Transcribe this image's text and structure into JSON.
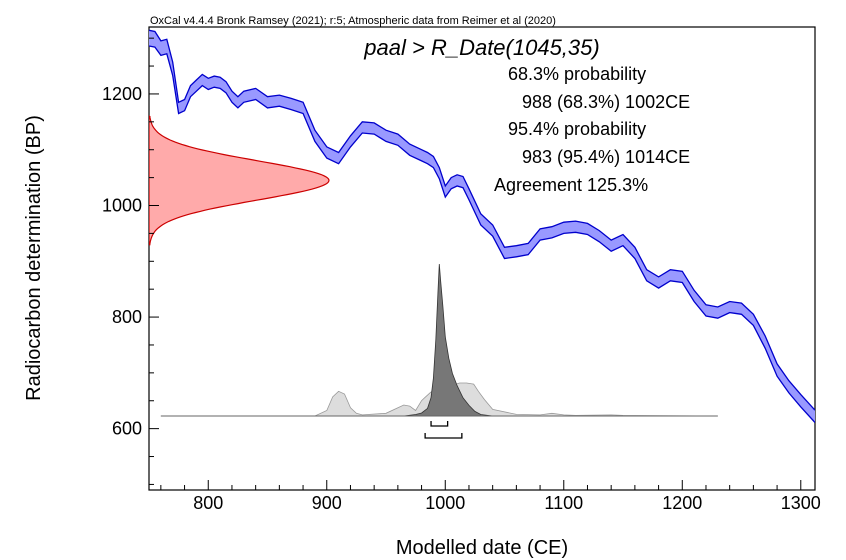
{
  "header": "OxCal v4.4.4 Bronk Ramsey (2021); r:5; Atmospheric data from Reimer et al (2020)",
  "title": "paal > R_Date(1045,35)",
  "annotations": [
    "68.3% probability",
    "988 (68.3%) 1002CE",
    "95.4% probability",
    "983 (95.4%) 1014CE",
    "Agreement 125.3%"
  ],
  "colors": {
    "calibration_band": "#9999ff",
    "calibration_edge": "#0000cc",
    "radiocarbon_fill": "#ffaaaa",
    "radiocarbon_edge": "#cc0000",
    "posterior": "#777777",
    "prior": "#dddddd"
  },
  "chart_data": {
    "type": "area",
    "xlabel": "Modelled date (CE)",
    "ylabel": "Radiocarbon determination (BP)",
    "xlim": [
      750,
      1312
    ],
    "ylim": [
      490,
      1320
    ],
    "xticks": [
      800,
      900,
      1000,
      1100,
      1200,
      1300
    ],
    "yticks": [
      600,
      800,
      1000,
      1200
    ],
    "tick_labels_x": [
      "800",
      "900",
      "1000",
      "1100",
      "1200",
      "1300"
    ],
    "tick_labels_y": [
      "600",
      "800",
      "1000",
      "1200"
    ],
    "calibration_curve": {
      "x": [
        750,
        755,
        760,
        765,
        770,
        775,
        780,
        785,
        790,
        795,
        800,
        805,
        810,
        815,
        820,
        825,
        830,
        840,
        850,
        860,
        870,
        880,
        890,
        900,
        910,
        920,
        930,
        940,
        950,
        960,
        970,
        980,
        985,
        990,
        995,
        1000,
        1005,
        1010,
        1015,
        1020,
        1030,
        1040,
        1050,
        1060,
        1070,
        1080,
        1090,
        1100,
        1110,
        1120,
        1130,
        1140,
        1150,
        1160,
        1170,
        1180,
        1190,
        1200,
        1210,
        1220,
        1230,
        1240,
        1250,
        1260,
        1270,
        1280,
        1290,
        1300,
        1312
      ],
      "mid": [
        1300,
        1298,
        1282,
        1285,
        1245,
        1175,
        1180,
        1205,
        1215,
        1225,
        1218,
        1222,
        1220,
        1212,
        1195,
        1185,
        1195,
        1200,
        1185,
        1188,
        1182,
        1175,
        1125,
        1095,
        1085,
        1115,
        1140,
        1138,
        1125,
        1118,
        1100,
        1090,
        1085,
        1078,
        1058,
        1025,
        1040,
        1045,
        1042,
        1020,
        975,
        955,
        915,
        918,
        922,
        948,
        952,
        960,
        962,
        958,
        945,
        928,
        938,
        915,
        875,
        862,
        875,
        872,
        838,
        812,
        808,
        818,
        815,
        795,
        755,
        705,
        675,
        650,
        622
      ],
      "sigma": [
        14,
        14,
        13,
        13,
        12,
        10,
        10,
        10,
        10,
        10,
        10,
        10,
        10,
        10,
        10,
        10,
        10,
        10,
        10,
        10,
        10,
        10,
        10,
        10,
        10,
        10,
        10,
        10,
        10,
        10,
        10,
        10,
        10,
        10,
        10,
        10,
        10,
        10,
        10,
        10,
        10,
        10,
        10,
        10,
        10,
        10,
        10,
        10,
        10,
        10,
        10,
        10,
        10,
        10,
        10,
        10,
        10,
        10,
        10,
        10,
        10,
        10,
        10,
        10,
        11,
        11,
        11,
        11,
        11
      ]
    },
    "radiocarbon_date": {
      "mean": 1045,
      "sd": 35
    },
    "prior_distribution": {
      "x": [
        760,
        890,
        900,
        905,
        910,
        915,
        920,
        925,
        930,
        950,
        960,
        965,
        970,
        975,
        980,
        983,
        987,
        992,
        997,
        1000,
        1004,
        1008,
        1012,
        1018,
        1024,
        1028,
        1033,
        1040,
        1060,
        1080,
        1090,
        1100,
        1110,
        1140,
        1150,
        1230
      ],
      "y": [
        0,
        0,
        0.1,
        0.35,
        0.45,
        0.4,
        0.15,
        0.05,
        0.02,
        0.05,
        0.15,
        0.2,
        0.18,
        0.1,
        0.28,
        0.34,
        0.42,
        0.5,
        0.56,
        0.58,
        0.58,
        0.57,
        0.6,
        0.6,
        0.58,
        0.45,
        0.3,
        0.12,
        0.03,
        0.02,
        0.05,
        0.02,
        0.01,
        0.02,
        0.01,
        0
      ]
    },
    "posterior_distribution": {
      "x": [
        965,
        975,
        980,
        985,
        988,
        990,
        992,
        994,
        995,
        996,
        998,
        1000,
        1003,
        1006,
        1010,
        1015,
        1020,
        1025,
        1030,
        1040
      ],
      "y": [
        0,
        0.01,
        0.02,
        0.05,
        0.12,
        0.25,
        0.5,
        0.85,
        1.0,
        0.9,
        0.72,
        0.52,
        0.38,
        0.28,
        0.2,
        0.12,
        0.07,
        0.03,
        0.01,
        0
      ]
    },
    "ranges": [
      {
        "level": "68.3%",
        "from": 988,
        "to": 1002
      },
      {
        "level": "95.4%",
        "from": 983,
        "to": 1014
      }
    ]
  }
}
